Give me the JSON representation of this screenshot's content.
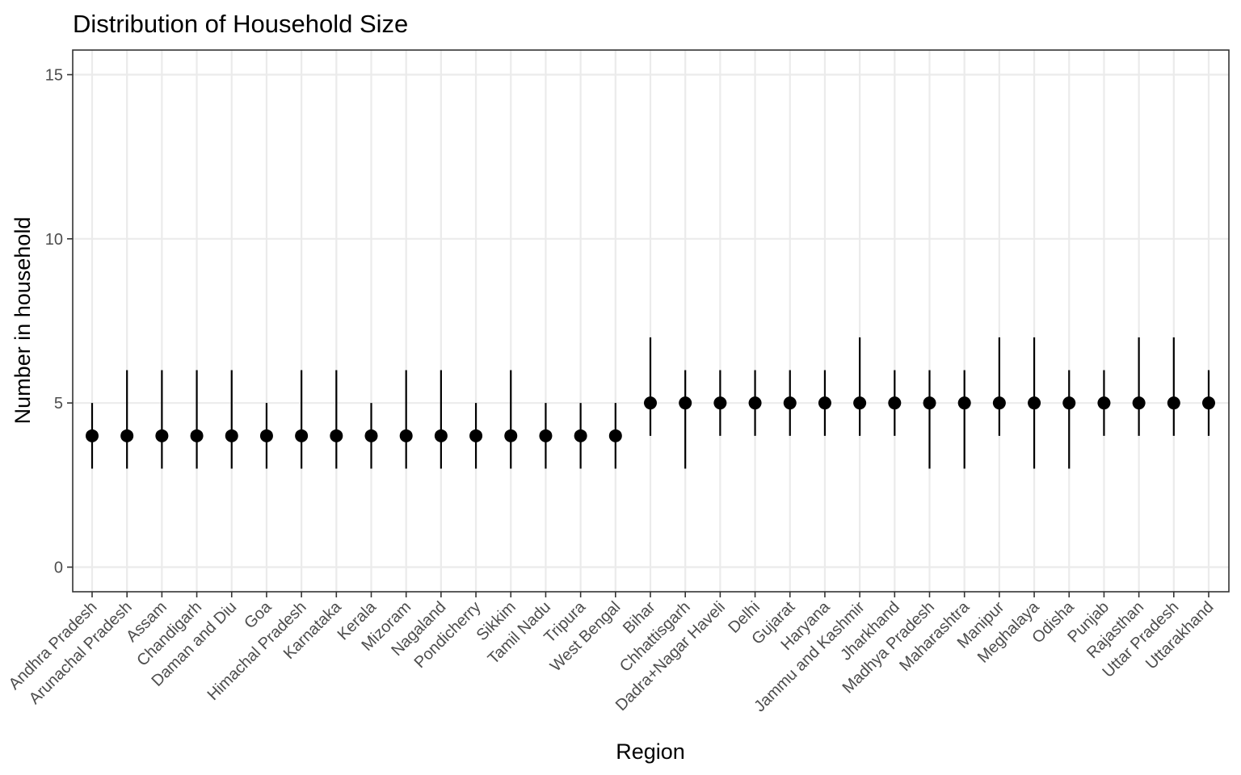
{
  "chart_data": {
    "type": "pointrange",
    "title": "Distribution of Household Size",
    "xlabel": "Region",
    "ylabel": "Number in household",
    "ylim": [
      -0.75,
      15.75
    ],
    "yticks": [
      0,
      5,
      10,
      15
    ],
    "grid": true,
    "legend": "none",
    "categories": [
      "Andhra Pradesh",
      "Arunachal Pradesh",
      "Assam",
      "Chandigarh",
      "Daman and Diu",
      "Goa",
      "Himachal Pradesh",
      "Karnataka",
      "Kerala",
      "Mizoram",
      "Nagaland",
      "Pondicherry",
      "Sikkim",
      "Tamil Nadu",
      "Tripura",
      "West Bengal",
      "Bihar",
      "Chhattisgarh",
      "Dadra+Nagar Haveli",
      "Delhi",
      "Gujarat",
      "Haryana",
      "Jammu and Kashmir",
      "Jharkhand",
      "Madhya Pradesh",
      "Maharashtra",
      "Manipur",
      "Meghalaya",
      "Odisha",
      "Punjab",
      "Rajasthan",
      "Uttar Pradesh",
      "Uttarakhand"
    ],
    "median": [
      4,
      4,
      4,
      4,
      4,
      4,
      4,
      4,
      4,
      4,
      4,
      4,
      4,
      4,
      4,
      4,
      5,
      5,
      5,
      5,
      5,
      5,
      5,
      5,
      5,
      5,
      5,
      5,
      5,
      5,
      5,
      5,
      5
    ],
    "lower": [
      3,
      3,
      3,
      3,
      3,
      3,
      3,
      3,
      3,
      3,
      3,
      3,
      3,
      3,
      3,
      3,
      4,
      3,
      4,
      4,
      4,
      4,
      4,
      4,
      3,
      3,
      4,
      3,
      3,
      4,
      4,
      4,
      4
    ],
    "upper": [
      5,
      6,
      6,
      6,
      6,
      5,
      6,
      6,
      5,
      6,
      6,
      5,
      6,
      5,
      5,
      5,
      7,
      6,
      6,
      6,
      6,
      6,
      7,
      6,
      6,
      6,
      7,
      7,
      6,
      6,
      7,
      7,
      6
    ]
  }
}
